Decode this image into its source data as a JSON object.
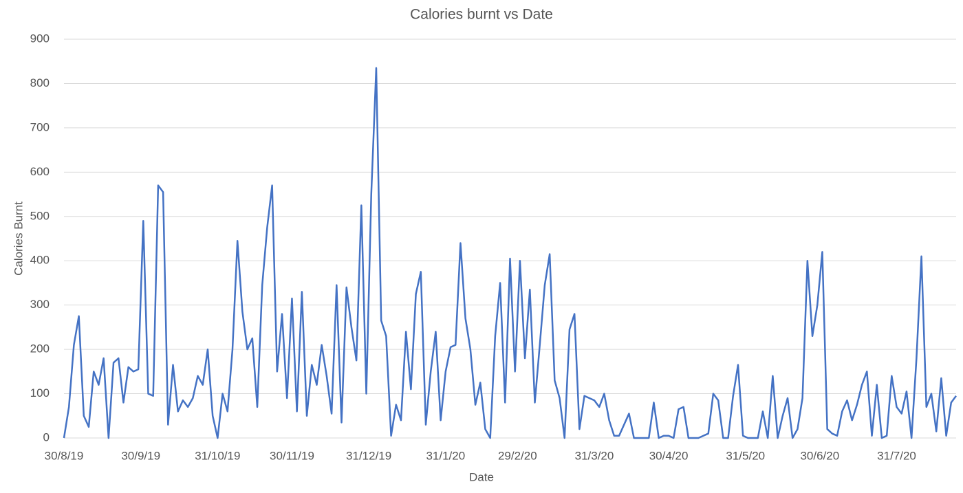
{
  "chart_data": {
    "type": "line",
    "title": "Calories burnt vs Date",
    "x_label": "Date",
    "y_label": "Calories Burnt",
    "x": [
      "30/8/19",
      "1/9/19",
      "3/9/19",
      "5/9/19",
      "7/9/19",
      "9/9/19",
      "11/9/19",
      "13/9/19",
      "15/9/19",
      "17/9/19",
      "19/9/19",
      "21/9/19",
      "23/9/19",
      "25/9/19",
      "27/9/19",
      "29/9/19",
      "1/10/19",
      "3/10/19",
      "5/10/19",
      "7/10/19",
      "9/10/19",
      "11/10/19",
      "13/10/19",
      "15/10/19",
      "17/10/19",
      "19/10/19",
      "21/10/19",
      "23/10/19",
      "25/10/19",
      "27/10/19",
      "29/10/19",
      "31/10/19",
      "2/11/19",
      "4/11/19",
      "6/11/19",
      "8/11/19",
      "10/11/19",
      "12/11/19",
      "14/11/19",
      "16/11/19",
      "18/11/19",
      "20/11/19",
      "22/11/19",
      "24/11/19",
      "26/11/19",
      "28/11/19",
      "30/11/19",
      "2/12/19",
      "4/12/19",
      "6/12/19",
      "8/12/19",
      "10/12/19",
      "12/12/19",
      "14/12/19",
      "16/12/19",
      "18/12/19",
      "20/12/19",
      "22/12/19",
      "24/12/19",
      "26/12/19",
      "28/12/19",
      "30/12/19",
      "1/1/20",
      "3/1/20",
      "5/1/20",
      "7/1/20",
      "9/1/20",
      "11/1/20",
      "13/1/20",
      "15/1/20",
      "17/1/20",
      "19/1/20",
      "21/1/20",
      "23/1/20",
      "25/1/20",
      "27/1/20",
      "29/1/20",
      "31/1/20",
      "2/2/20",
      "4/2/20",
      "6/2/20",
      "8/2/20",
      "10/2/20",
      "12/2/20",
      "14/2/20",
      "16/2/20",
      "18/2/20",
      "20/2/20",
      "22/2/20",
      "24/2/20",
      "26/2/20",
      "28/2/20",
      "1/3/20",
      "3/3/20",
      "5/3/20",
      "7/3/20",
      "9/3/20",
      "11/3/20",
      "13/3/20",
      "15/3/20",
      "17/3/20",
      "19/3/20",
      "21/3/20",
      "23/3/20",
      "25/3/20",
      "27/3/20",
      "29/3/20",
      "31/3/20",
      "2/4/20",
      "4/4/20",
      "6/4/20",
      "8/4/20",
      "10/4/20",
      "12/4/20",
      "14/4/20",
      "16/4/20",
      "18/4/20",
      "20/4/20",
      "22/4/20",
      "24/4/20",
      "26/4/20",
      "28/4/20",
      "30/4/20",
      "2/5/20",
      "4/5/20",
      "6/5/20",
      "8/5/20",
      "10/5/20",
      "12/5/20",
      "14/5/20",
      "16/5/20",
      "18/5/20",
      "20/5/20",
      "22/5/20",
      "24/5/20",
      "26/5/20",
      "28/5/20",
      "30/5/20",
      "1/6/20",
      "3/6/20",
      "5/6/20",
      "7/6/20",
      "9/6/20",
      "11/6/20",
      "13/6/20",
      "15/6/20",
      "17/6/20",
      "19/6/20",
      "21/6/20",
      "23/6/20",
      "25/6/20",
      "27/6/20",
      "29/6/20",
      "1/7/20",
      "3/7/20",
      "5/7/20",
      "7/7/20",
      "9/7/20",
      "11/7/20",
      "13/7/20",
      "15/7/20",
      "17/7/20",
      "19/7/20",
      "21/7/20",
      "23/7/20",
      "25/7/20",
      "27/7/20",
      "29/7/20",
      "31/7/20",
      "2/8/20",
      "4/8/20",
      "6/8/20",
      "8/8/20",
      "10/8/20",
      "12/8/20",
      "14/8/20",
      "16/8/20",
      "18/8/20",
      "20/8/20",
      "22/8/20",
      "24/8/20"
    ],
    "series": [
      {
        "name": "Calories Burnt",
        "color": "#4472c4",
        "values": [
          0,
          70,
          210,
          275,
          50,
          25,
          150,
          120,
          180,
          0,
          170,
          180,
          80,
          160,
          150,
          155,
          490,
          100,
          95,
          570,
          555,
          30,
          165,
          60,
          85,
          70,
          90,
          140,
          120,
          200,
          50,
          0,
          100,
          60,
          200,
          445,
          285,
          200,
          225,
          70,
          345,
          475,
          570,
          150,
          280,
          90,
          315,
          60,
          330,
          50,
          165,
          120,
          210,
          140,
          55,
          345,
          35,
          340,
          250,
          175,
          525,
          100,
          550,
          835,
          265,
          230,
          5,
          75,
          40,
          240,
          110,
          325,
          375,
          30,
          150,
          240,
          40,
          150,
          205,
          210,
          440,
          270,
          200,
          75,
          125,
          20,
          0,
          230,
          350,
          80,
          405,
          150,
          400,
          180,
          335,
          80,
          210,
          345,
          415,
          130,
          90,
          0,
          245,
          280,
          20,
          95,
          90,
          85,
          70,
          100,
          40,
          5,
          5,
          30,
          55,
          0,
          0,
          0,
          0,
          80,
          0,
          5,
          5,
          0,
          65,
          70,
          0,
          0,
          0,
          5,
          10,
          100,
          85,
          0,
          0,
          95,
          165,
          5,
          0,
          0,
          0,
          60,
          0,
          140,
          0,
          50,
          90,
          0,
          20,
          90,
          400,
          230,
          300,
          420,
          20,
          10,
          5,
          60,
          85,
          40,
          75,
          120,
          150,
          5,
          120,
          0,
          5,
          140,
          70,
          55,
          105,
          0,
          180,
          410,
          70,
          100,
          15,
          135,
          5,
          80,
          95
        ]
      }
    ],
    "xlim": [
      "30/8/19",
      "24/8/20"
    ],
    "xticks": [
      "30/8/19",
      "30/9/19",
      "31/10/19",
      "30/11/19",
      "31/12/19",
      "31/1/20",
      "29/2/20",
      "31/3/20",
      "30/4/20",
      "31/5/20",
      "30/6/20",
      "31/7/20"
    ],
    "ylim": [
      0,
      900
    ],
    "yticks": [
      0,
      100,
      200,
      300,
      400,
      500,
      600,
      700,
      800,
      900
    ],
    "grid": true
  }
}
